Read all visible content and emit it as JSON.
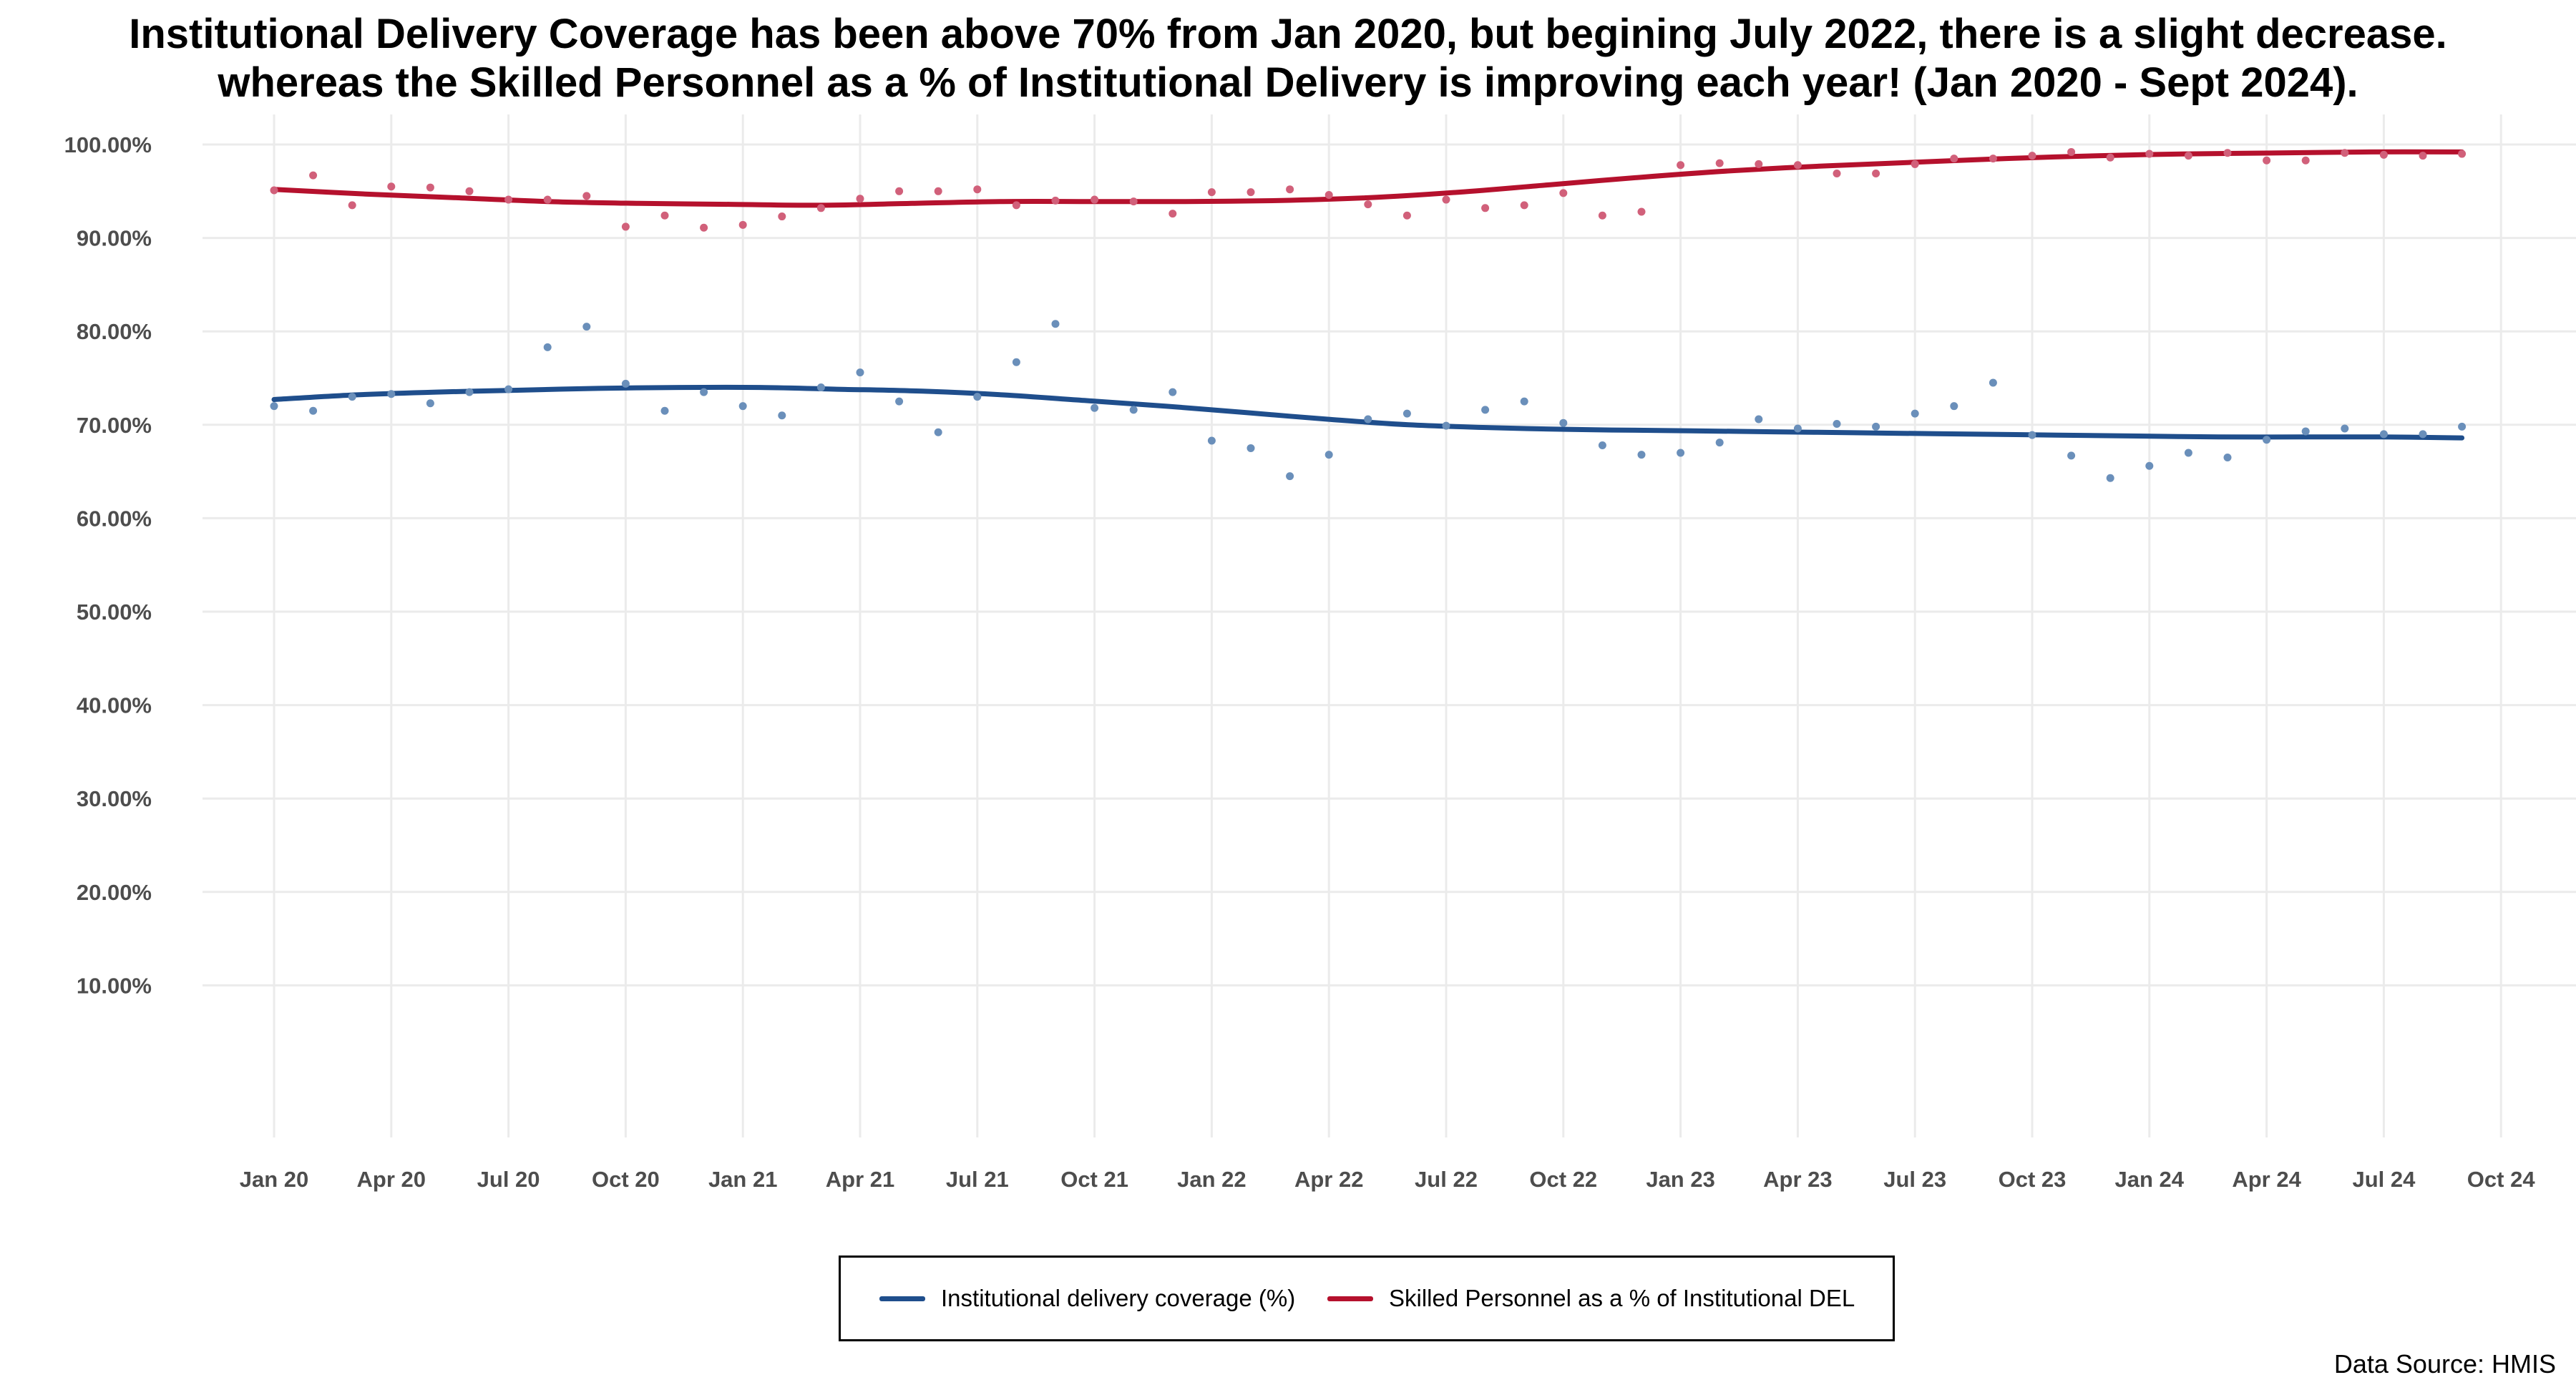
{
  "title": {
    "line1": "Institutional Delivery Coverage has been above 70% from Jan 2020, but begining July 2022, there is a slight decrease.",
    "line2": "whereas the Skilled Personnel as a % of Institutional Delivery is improving each year! (Jan 2020 - Sept 2024)."
  },
  "source": "Data Source: HMIS",
  "legend": {
    "items": [
      {
        "label": "Institutional delivery coverage (%)",
        "color": "#1f4e8c"
      },
      {
        "label": "Skilled  Personnel as a % of Institutional DEL",
        "color": "#b5112d"
      }
    ],
    "placement": "bottom-center"
  },
  "chart_data": {
    "type": "scatter",
    "x_tick_labels": [
      "Jan 20",
      "Apr 20",
      "Jul 20",
      "Oct 20",
      "Jan 21",
      "Apr 21",
      "Jul 21",
      "Oct 21",
      "Jan 22",
      "Apr 22",
      "Jul 22",
      "Oct 22",
      "Jan 23",
      "Apr 23",
      "Jul 23",
      "Oct 23",
      "Jan 24",
      "Apr 24",
      "Jul 24",
      "Oct 24"
    ],
    "y_tick_labels": [
      "10.00%",
      "20.00%",
      "30.00%",
      "40.00%",
      "50.00%",
      "60.00%",
      "70.00%",
      "80.00%",
      "90.00%",
      "100.00%"
    ],
    "x": [
      "2020-01",
      "2020-02",
      "2020-03",
      "2020-04",
      "2020-05",
      "2020-06",
      "2020-07",
      "2020-08",
      "2020-09",
      "2020-10",
      "2020-11",
      "2020-12",
      "2021-01",
      "2021-02",
      "2021-03",
      "2021-04",
      "2021-05",
      "2021-06",
      "2021-07",
      "2021-08",
      "2021-09",
      "2021-10",
      "2021-11",
      "2021-12",
      "2022-01",
      "2022-02",
      "2022-03",
      "2022-04",
      "2022-05",
      "2022-06",
      "2022-07",
      "2022-08",
      "2022-09",
      "2022-10",
      "2022-11",
      "2022-12",
      "2023-01",
      "2023-02",
      "2023-03",
      "2023-04",
      "2023-05",
      "2023-06",
      "2023-07",
      "2023-08",
      "2023-09",
      "2023-10",
      "2023-11",
      "2023-12",
      "2024-01",
      "2024-02",
      "2024-03",
      "2024-04",
      "2024-05",
      "2024-06",
      "2024-07",
      "2024-08",
      "2024-09"
    ],
    "xlim": [
      "2019-12",
      "2024-10"
    ],
    "ylim": [
      0,
      104
    ],
    "grid": true,
    "series": [
      {
        "name": "Institutional delivery coverage (%)",
        "color": "#1f4e8c",
        "point_color": "#6a8fba",
        "values": [
          72.0,
          71.5,
          73.0,
          73.3,
          72.3,
          73.5,
          73.8,
          78.3,
          80.5,
          74.4,
          71.5,
          73.5,
          72.0,
          71.0,
          74.0,
          75.6,
          72.5,
          69.2,
          73.0,
          76.7,
          80.8,
          71.8,
          71.6,
          73.5,
          68.3,
          67.5,
          64.5,
          66.8,
          70.6,
          71.2,
          69.9,
          71.6,
          72.5,
          70.2,
          67.8,
          66.8,
          67.0,
          68.1,
          70.6,
          69.6,
          70.1,
          69.8,
          71.2,
          72.0,
          74.5,
          68.9,
          66.7,
          64.3,
          65.6,
          67.0,
          66.5,
          68.4,
          69.3,
          69.6,
          69.0,
          69.0,
          69.8
        ],
        "trend": [
          72.7,
          73.2,
          73.5,
          73.7,
          73.9,
          74.0,
          74.0,
          73.8,
          73.6,
          73.2,
          72.6,
          72.0,
          71.3,
          70.6,
          70.0,
          69.7,
          69.5,
          69.4,
          69.3,
          69.2,
          69.1,
          69.0,
          68.9,
          68.8,
          68.7,
          68.7,
          68.7,
          68.6
        ]
      },
      {
        "name": "Skilled  Personnel as a % of Institutional DEL",
        "color": "#b5112d",
        "point_color": "#d1607a",
        "values": [
          95.1,
          96.7,
          93.5,
          95.5,
          95.4,
          95.0,
          94.1,
          94.1,
          94.5,
          91.2,
          92.4,
          91.1,
          91.4,
          92.3,
          93.2,
          94.2,
          95.0,
          95.0,
          95.2,
          93.5,
          94.0,
          94.1,
          93.9,
          92.6,
          94.9,
          94.9,
          95.2,
          94.6,
          93.6,
          92.4,
          94.1,
          93.2,
          93.5,
          94.8,
          92.4,
          92.8,
          97.8,
          98.0,
          97.9,
          97.8,
          96.9,
          96.9,
          97.9,
          98.5,
          98.5,
          98.8,
          99.2,
          98.6,
          99.0,
          98.8,
          99.1,
          98.3,
          98.3,
          99.1,
          98.9,
          98.8,
          99.0
        ],
        "trend": [
          95.2,
          94.7,
          94.3,
          93.9,
          93.7,
          93.6,
          93.5,
          93.7,
          93.9,
          93.9,
          93.9,
          94.0,
          94.3,
          94.9,
          95.7,
          96.5,
          97.2,
          97.7,
          98.1,
          98.5,
          98.8,
          99.0,
          99.1,
          99.2,
          99.2
        ]
      }
    ]
  }
}
